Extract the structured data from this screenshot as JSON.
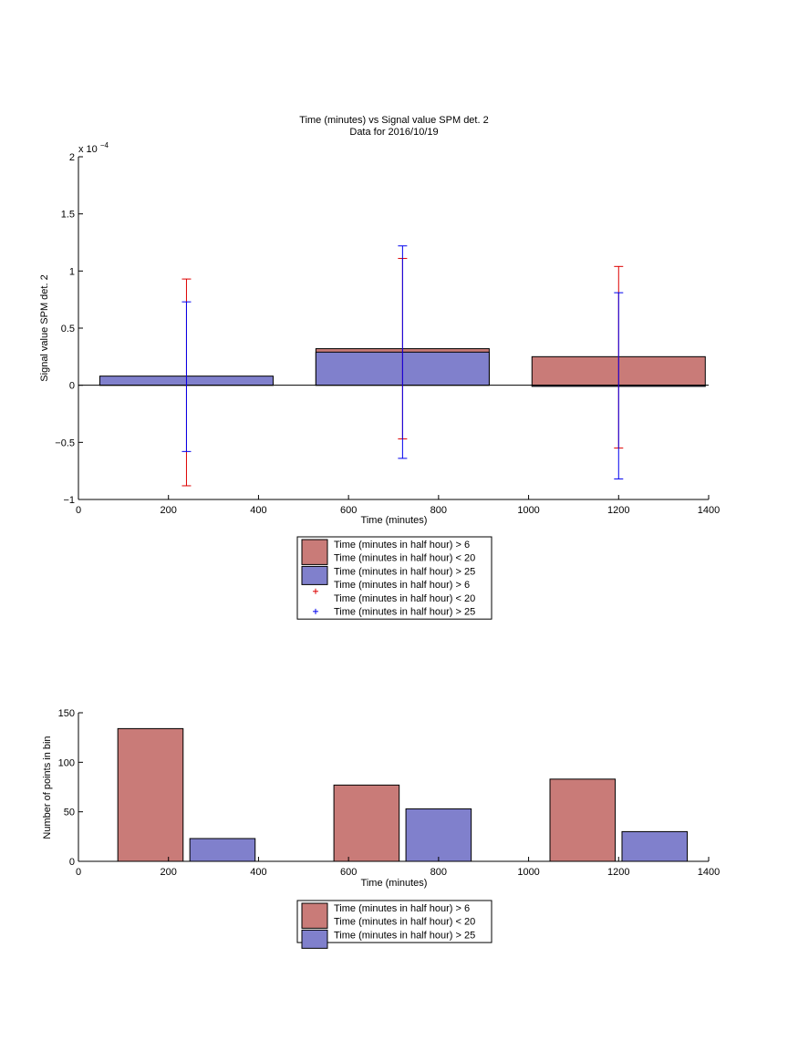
{
  "chart_data": [
    {
      "type": "bar",
      "title": "Time (minutes) vs Signal value SPM det. 2",
      "subtitle": "Data for 2016/10/19",
      "xlabel": "Time (minutes)",
      "ylabel": "Signal value SPM det. 2",
      "y_exponent_label": "x 10",
      "y_exponent_power": "−4",
      "xlim": [
        0,
        1400
      ],
      "ylim": [
        -1,
        2
      ],
      "y_scale": 0.0001,
      "x_ticks": [
        0,
        200,
        400,
        600,
        800,
        1000,
        1200,
        1400
      ],
      "x_tick_labels": [
        "0",
        "200",
        "400",
        "600",
        "800",
        "1000",
        "1200",
        "1400"
      ],
      "y_ticks": [
        -1,
        -0.5,
        0,
        0.5,
        1,
        1.5,
        2
      ],
      "y_tick_labels": [
        "−1",
        "−0.5",
        "0",
        "0.5",
        "1",
        "1.5",
        "2"
      ],
      "grid": false,
      "legend_position": "below",
      "bar_width": 385,
      "series": [
        {
          "name": "Time (minutes in half hour) > 6\nTime (minutes in half hour) < 20",
          "color": "#c97b78",
          "x": [
            240,
            720,
            1200
          ],
          "values": [
            0.02,
            0.32,
            0.25
          ]
        },
        {
          "name": "Time (minutes in half hour) > 25",
          "color": "#8080cc",
          "x": [
            240,
            720,
            1200
          ],
          "values": [
            0.08,
            0.29,
            -0.01
          ]
        }
      ],
      "error_series": [
        {
          "name": "Time (minutes in half hour) > 6\nTime (minutes in half hour) < 20",
          "color": "#dd0000",
          "x": [
            240,
            720,
            1200
          ],
          "upper": [
            0.93,
            1.11,
            1.04
          ],
          "lower": [
            -0.88,
            -0.47,
            -0.55
          ]
        },
        {
          "name": "Time (minutes in half hour) > 25",
          "color": "#0000ee",
          "x": [
            240,
            720,
            1200
          ],
          "upper": [
            0.73,
            1.22,
            0.81
          ],
          "lower": [
            -0.58,
            -0.64,
            -0.82
          ]
        }
      ],
      "legend": [
        {
          "kind": "patch",
          "color": "#c97b78",
          "lines": [
            "Time (minutes in half hour) > 6",
            "Time (minutes in half hour) < 20"
          ]
        },
        {
          "kind": "patch",
          "color": "#8080cc",
          "lines": [
            "Time (minutes in half hour) > 25"
          ]
        },
        {
          "kind": "marker",
          "color": "#dd0000",
          "lines": [
            "Time (minutes in half hour) > 6",
            "Time (minutes in half hour) < 20"
          ]
        },
        {
          "kind": "marker",
          "color": "#0000ee",
          "lines": [
            "Time (minutes in half hour) > 25"
          ]
        }
      ]
    },
    {
      "type": "bar",
      "title": "",
      "xlabel": "Time (minutes)",
      "ylabel": "Number of points in bin",
      "xlim": [
        0,
        1400
      ],
      "ylim": [
        0,
        150
      ],
      "x_ticks": [
        0,
        200,
        400,
        600,
        800,
        1000,
        1200,
        1400
      ],
      "x_tick_labels": [
        "0",
        "200",
        "400",
        "600",
        "800",
        "1000",
        "1200",
        "1400"
      ],
      "y_ticks": [
        0,
        50,
        100,
        150
      ],
      "y_tick_labels": [
        "0",
        "50",
        "100",
        "150"
      ],
      "grid": false,
      "legend_position": "below",
      "bar_width": 145,
      "series": [
        {
          "name": "Time (minutes in half hour) > 6\nTime (minutes in half hour) < 20",
          "color": "#c97b78",
          "x": [
            160,
            640,
            1120
          ],
          "values": [
            134,
            77,
            83
          ]
        },
        {
          "name": "Time (minutes in half hour) > 25",
          "color": "#8080cc",
          "x": [
            320,
            800,
            1280
          ],
          "values": [
            23,
            53,
            30
          ]
        }
      ],
      "legend": [
        {
          "kind": "patch",
          "color": "#c97b78",
          "lines": [
            "Time (minutes in half hour) > 6",
            "Time (minutes in half hour) < 20"
          ]
        },
        {
          "kind": "patch",
          "color": "#8080cc",
          "lines": [
            "Time (minutes in half hour) > 25"
          ]
        }
      ]
    }
  ]
}
